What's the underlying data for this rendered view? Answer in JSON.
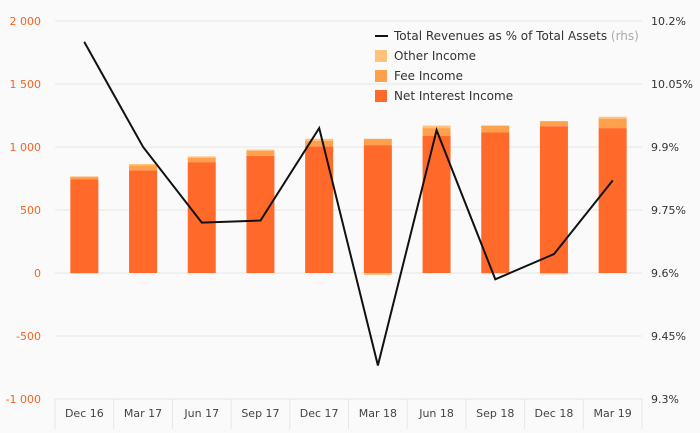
{
  "chart_data": {
    "type": "bar",
    "stacked": true,
    "categories": [
      "Dec 16",
      "Mar 17",
      "Jun 17",
      "Sep 17",
      "Dec 17",
      "Mar 18",
      "Jun 18",
      "Sep 18",
      "Dec 18",
      "Mar 19"
    ],
    "series": [
      {
        "name": "Net Interest Income",
        "color": "#ff6a2a",
        "values": [
          745,
          815,
          880,
          930,
          1005,
          1015,
          1090,
          1115,
          1165,
          1150
        ]
      },
      {
        "name": "Fee Income",
        "color": "#ffa04d",
        "values": [
          20,
          40,
          35,
          40,
          45,
          50,
          60,
          55,
          40,
          75
        ]
      },
      {
        "name": "Other Income",
        "color": "#ffc27a",
        "values": [
          -5,
          10,
          10,
          10,
          15,
          -15,
          20,
          -5,
          -10,
          15
        ]
      }
    ],
    "line_series": {
      "name": "Total Revenues as % of Total Assets",
      "name_suffix": "(rhs)",
      "color": "#111111",
      "axis": "right",
      "values": [
        10.15,
        9.9,
        9.72,
        9.725,
        9.945,
        9.38,
        9.94,
        9.585,
        9.645,
        9.82
      ]
    },
    "left_axis": {
      "ylim": [
        -1000,
        2000
      ],
      "ticks": [
        -1000,
        -500,
        0,
        500,
        1000,
        1500,
        2000
      ],
      "tick_labels": [
        "-1 000",
        "-500",
        "0",
        "500",
        "1 000",
        "1 500",
        "2 000"
      ],
      "color": "#f26522"
    },
    "right_axis": {
      "ylim": [
        9.3,
        10.2
      ],
      "ticks": [
        9.3,
        9.45,
        9.6,
        9.75,
        9.9,
        10.05,
        10.2
      ],
      "tick_labels": [
        "9.3%",
        "9.45%",
        "9.6%",
        "9.75%",
        "9.9%",
        "10.05%",
        "10.2%"
      ],
      "color": "#333333"
    },
    "legend_position": "top-right",
    "grid": true
  }
}
